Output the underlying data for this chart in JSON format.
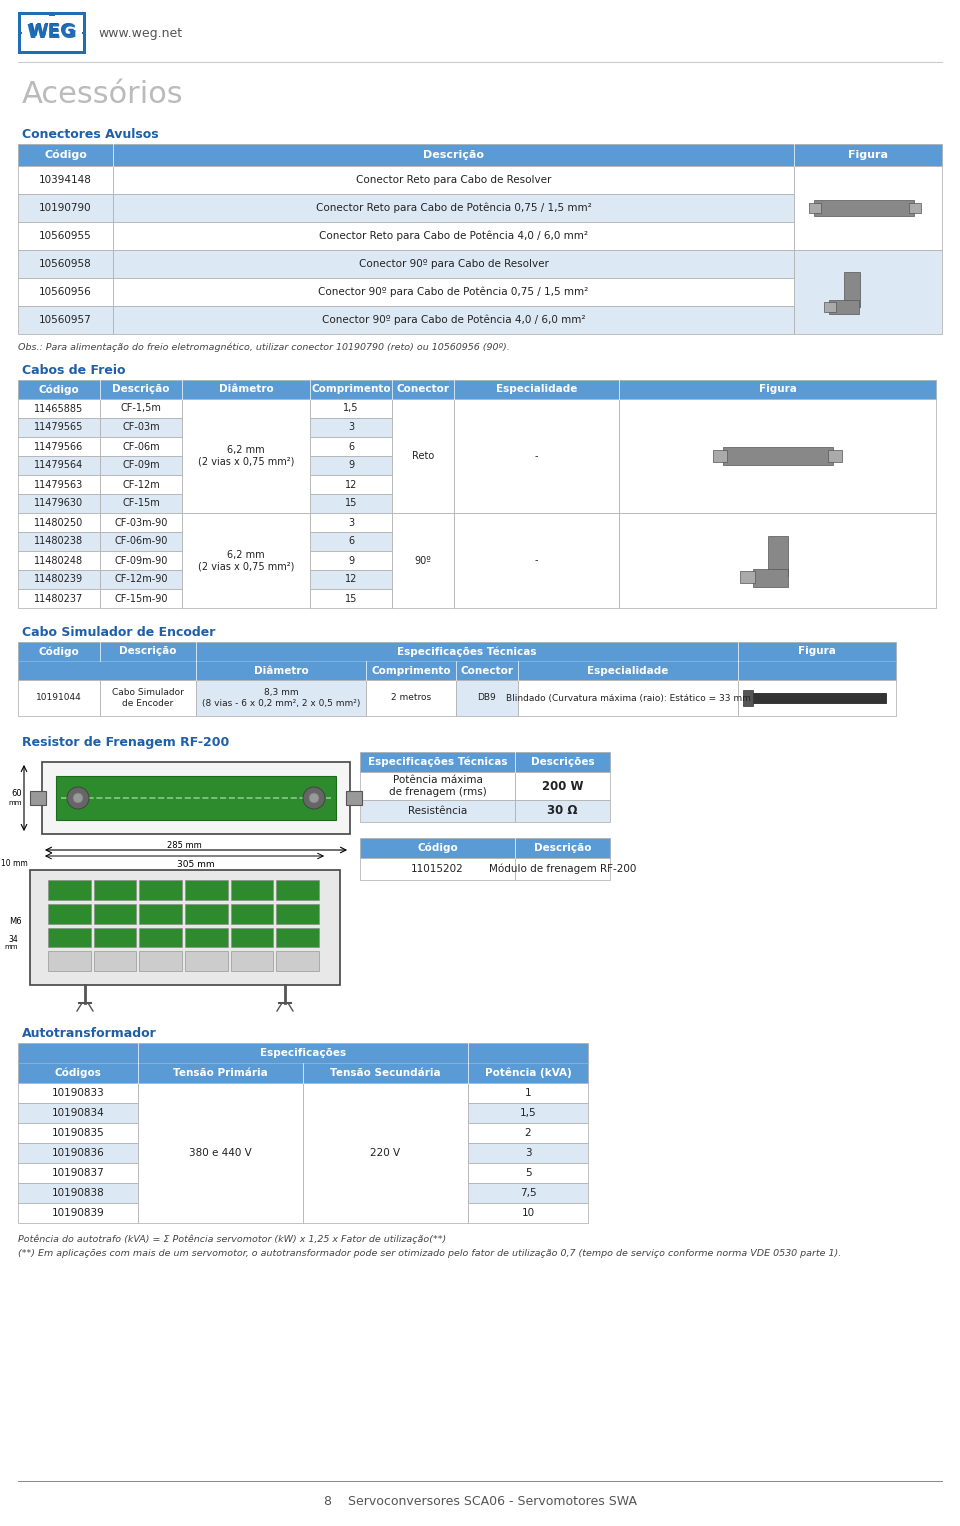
{
  "page_bg": "#ffffff",
  "header_bg": "#5b9bd5",
  "header_text": "#ffffff",
  "row_bg_light": "#dce9f5",
  "row_bg_white": "#ffffff",
  "section_title_color": "#1f5fa6",
  "body_text_color": "#222222",
  "border_color": "#aaaaaa",
  "border_dark": "#666666",
  "conectores_avulsos": {
    "title": "Conectores Avulsos",
    "rows": [
      [
        "10394148",
        "Conector Reto para Cabo de Resolver"
      ],
      [
        "10190790",
        "Conector Reto para Cabo de Potência 0,75 / 1,5 mm²"
      ],
      [
        "10560955",
        "Conector Reto para Cabo de Potência 4,0 / 6,0 mm²"
      ],
      [
        "10560958",
        "Conector 90º para Cabo de Resolver"
      ],
      [
        "10560956",
        "Conector 90º para Cabo de Potência 0,75 / 1,5 mm²"
      ],
      [
        "10560957",
        "Conector 90º para Cabo de Potência 4,0 / 6,0 mm²"
      ]
    ],
    "obs": "Obs.: Para alimentação do freio eletromagnético, utilizar conector 10190790 (reto) ou 10560956 (90º)."
  },
  "cabos_freio": {
    "title": "Cabos de Freio",
    "reto_rows": [
      [
        "11465885",
        "CF-1,5m",
        "1,5"
      ],
      [
        "11479565",
        "CF-03m",
        "3"
      ],
      [
        "11479566",
        "CF-06m",
        "6"
      ],
      [
        "11479564",
        "CF-09m",
        "9"
      ],
      [
        "11479563",
        "CF-12m",
        "12"
      ],
      [
        "11479630",
        "CF-15m",
        "15"
      ]
    ],
    "deg90_rows": [
      [
        "11480250",
        "CF-03m-90",
        "3"
      ],
      [
        "11480238",
        "CF-06m-90",
        "6"
      ],
      [
        "11480248",
        "CF-09m-90",
        "9"
      ],
      [
        "11480239",
        "CF-12m-90",
        "12"
      ],
      [
        "11480237",
        "CF-15m-90",
        "15"
      ]
    ]
  },
  "cabo_encoder": {
    "title": "Cabo Simulador de Encoder",
    "row": {
      "codigo": "10191044",
      "descricao": "Cabo Simulador\nde Encoder",
      "diametro": "8,3 mm\n(8 vias - 6 x 0,2 mm², 2 x 0,5 mm²)",
      "comprimento": "2 metros",
      "conector": "DB9",
      "especialidade": "Blindado (Curvatura máxima (raio): Estático = 33 mm"
    }
  },
  "resistor": {
    "title": "Resistor de Frenagem RF-200",
    "specs_rows": [
      [
        "Potência máxima\nde frenagem (rms)",
        "200 W"
      ],
      [
        "Resistência",
        "30 Ω"
      ]
    ],
    "code_row": [
      "11015202",
      "Módulo de frenagem RF-200"
    ]
  },
  "autotransformador": {
    "title": "Autotransformador",
    "rows": [
      [
        "10190833",
        "1"
      ],
      [
        "10190834",
        "1,5"
      ],
      [
        "10190835",
        "2"
      ],
      [
        "10190836",
        "3"
      ],
      [
        "10190837",
        "5"
      ],
      [
        "10190838",
        "7,5"
      ],
      [
        "10190839",
        "10"
      ]
    ],
    "tensao_primaria": "380 e 440 V",
    "tensao_secundaria": "220 V",
    "note1": "Potência do autotrafo (kVA) = Σ Potência servomotor (kW) x 1,25 x Fator de utilização(**)",
    "note2": "(**) Em aplicações com mais de um servomotor, o autotransformador pode ser otimizado pelo fator de utilização 0,7 (tempo de serviço conforme norma VDE 0530 parte 1)."
  },
  "footer_text": "8    Servoconversores SCA06 - Servomotores SWA"
}
